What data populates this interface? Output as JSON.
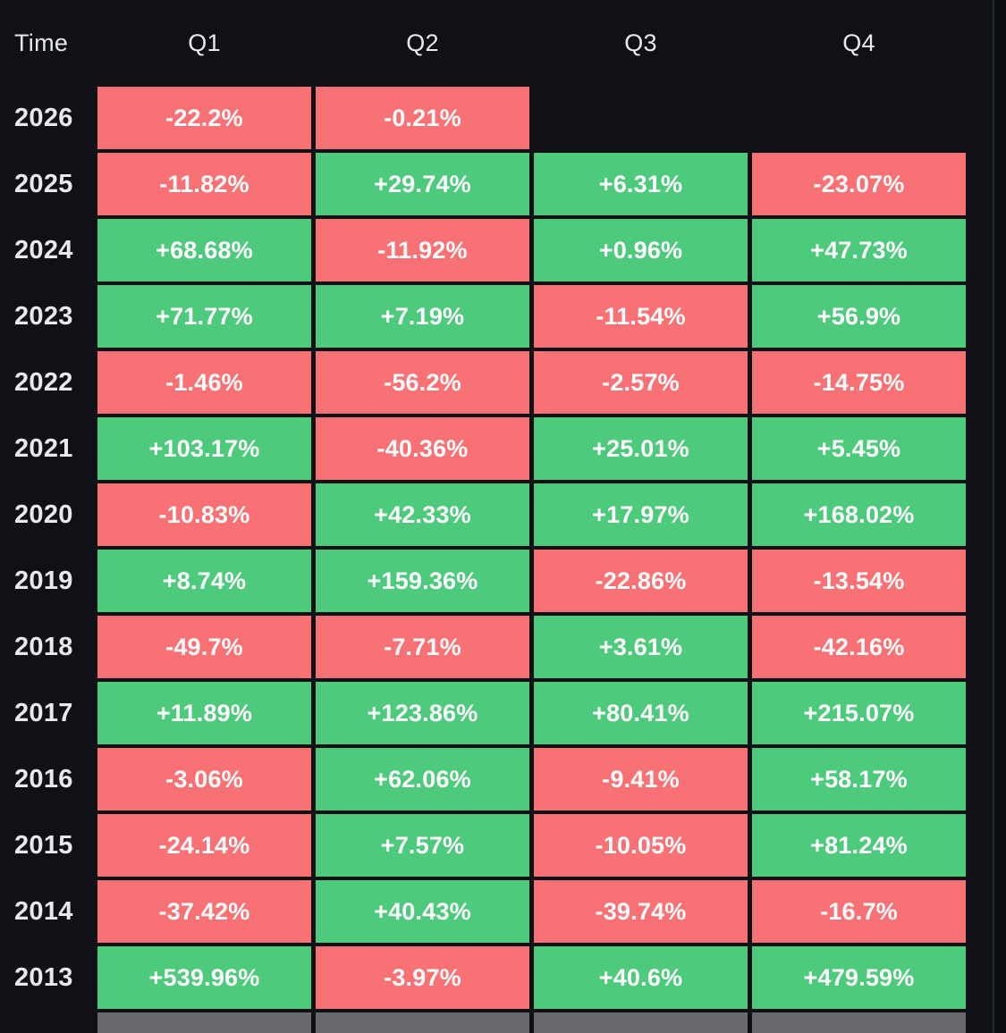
{
  "colors": {
    "background": "#0f1117",
    "positive": "#4eca7d",
    "negative": "#f87174",
    "neutral": "#67696d",
    "header_text": "#e7e9ec",
    "cell_text": "#fdfdfd"
  },
  "header": {
    "time_label": "Time",
    "columns": [
      "Q1",
      "Q2",
      "Q3",
      "Q4"
    ]
  },
  "chart_data": {
    "type": "table",
    "columns": [
      "Time",
      "Q1",
      "Q2",
      "Q3",
      "Q4"
    ],
    "value_unit": "percent",
    "color_rule": "positive=green, negative=red, footer=gray",
    "rows": [
      {
        "year": "2026",
        "values": [
          "-22.2%",
          "-0.21%",
          null,
          null
        ]
      },
      {
        "year": "2025",
        "values": [
          "-11.82%",
          "+29.74%",
          "+6.31%",
          "-23.07%"
        ]
      },
      {
        "year": "2024",
        "values": [
          "+68.68%",
          "-11.92%",
          "+0.96%",
          "+47.73%"
        ]
      },
      {
        "year": "2023",
        "values": [
          "+71.77%",
          "+7.19%",
          "-11.54%",
          "+56.9%"
        ]
      },
      {
        "year": "2022",
        "values": [
          "-1.46%",
          "-56.2%",
          "-2.57%",
          "-14.75%"
        ]
      },
      {
        "year": "2021",
        "values": [
          "+103.17%",
          "-40.36%",
          "+25.01%",
          "+5.45%"
        ]
      },
      {
        "year": "2020",
        "values": [
          "-10.83%",
          "+42.33%",
          "+17.97%",
          "+168.02%"
        ]
      },
      {
        "year": "2019",
        "values": [
          "+8.74%",
          "+159.36%",
          "-22.86%",
          "-13.54%"
        ]
      },
      {
        "year": "2018",
        "values": [
          "-49.7%",
          "-7.71%",
          "+3.61%",
          "-42.16%"
        ]
      },
      {
        "year": "2017",
        "values": [
          "+11.89%",
          "+123.86%",
          "+80.41%",
          "+215.07%"
        ]
      },
      {
        "year": "2016",
        "values": [
          "-3.06%",
          "+62.06%",
          "-9.41%",
          "+58.17%"
        ]
      },
      {
        "year": "2015",
        "values": [
          "-24.14%",
          "+7.57%",
          "-10.05%",
          "+81.24%"
        ]
      },
      {
        "year": "2014",
        "values": [
          "-37.42%",
          "+40.43%",
          "-39.74%",
          "-16.7%"
        ]
      },
      {
        "year": "2013",
        "values": [
          "+539.96%",
          "-3.97%",
          "+40.6%",
          "+479.59%"
        ]
      },
      {
        "year": "",
        "values": [
          "",
          "",
          "",
          ""
        ],
        "neutral": true
      }
    ]
  }
}
